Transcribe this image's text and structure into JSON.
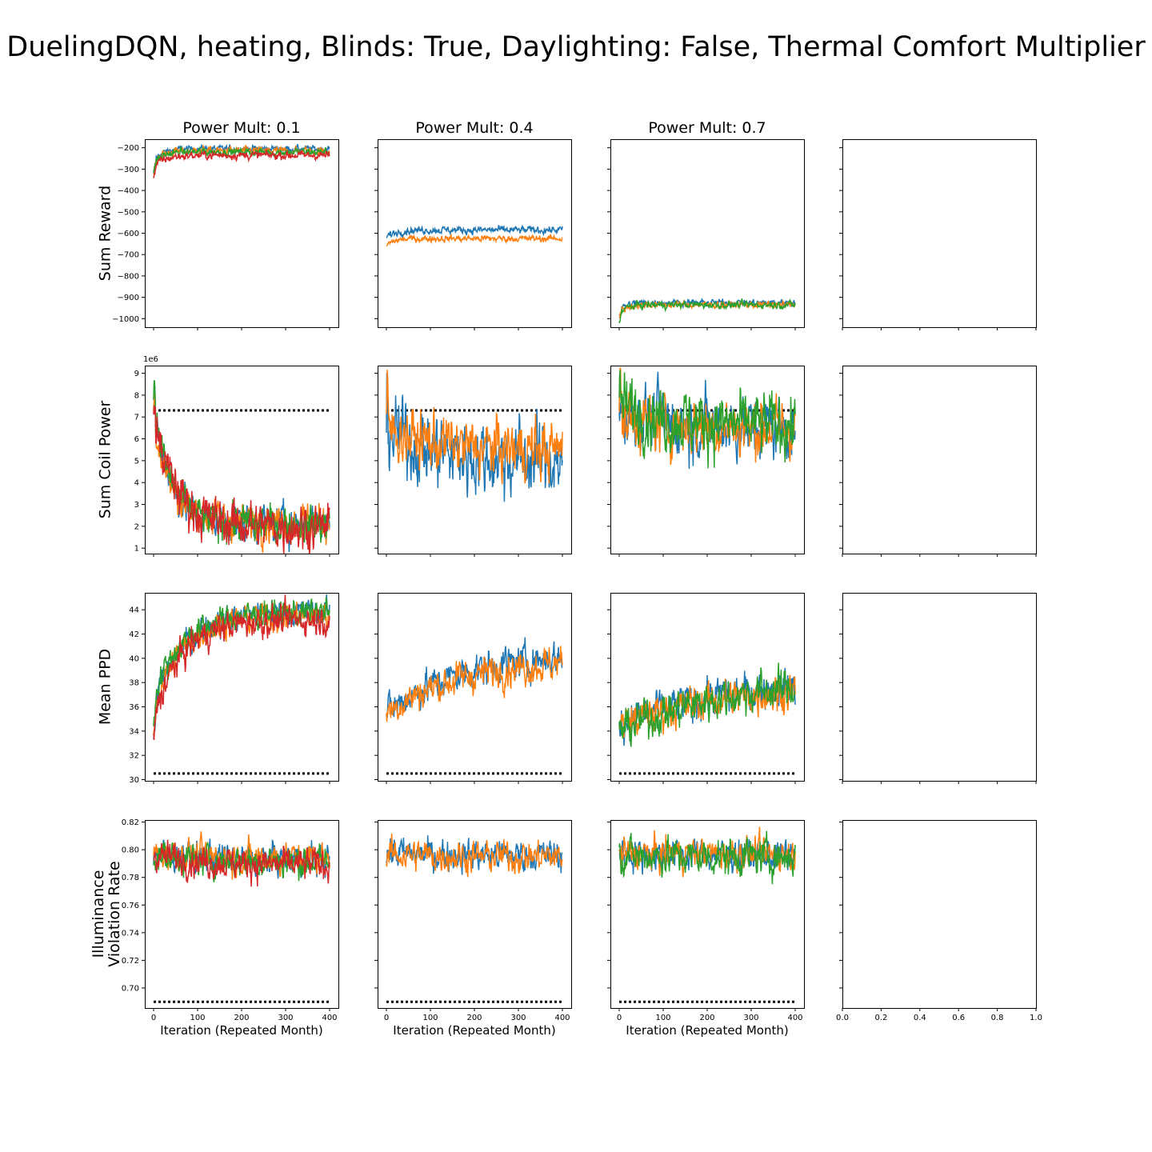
{
  "figure_title": "DuelingDQN, heating, Blinds: True, Daylighting: False, Thermal Comfort Multiplier",
  "xlabel": "Iteration (Repeated Month)",
  "column_titles": [
    "Power Mult: 0.1",
    "Power Mult: 0.4",
    "Power Mult: 0.7"
  ],
  "colors": {
    "C0": "#1f77b4",
    "C1": "#ff7f0e",
    "C2": "#2ca02c",
    "C3": "#d62728",
    "reference": "#000000"
  },
  "chart_data": {
    "type": "line",
    "layout": "4x4 grid of subplots (shared axes per row / column); last column empty",
    "x_range": [
      0,
      400
    ],
    "x_ticks": [
      0,
      100,
      200,
      300,
      400
    ],
    "empty_panel_x_ticks": [
      "0.0",
      "0.2",
      "0.4",
      "0.6",
      "0.8",
      "1.0"
    ],
    "rows": [
      {
        "ylabel": [
          "Sum Reward"
        ],
        "ylim": [
          -1040,
          -160
        ],
        "y_ticks": [
          -1000,
          -900,
          -800,
          -700,
          -600,
          -500,
          -400,
          -300,
          -200
        ],
        "y_tick_labels": [
          "−1000",
          "−900",
          "−800",
          "−700",
          "−600",
          "−500",
          "−400",
          "−300",
          "−200"
        ],
        "offset_text": "",
        "reference": null,
        "panels": [
          {
            "series": [
              {
                "color": "C0",
                "start": -260,
                "end": -205,
                "early_min": -320,
                "rate": 0.05,
                "noise": 8
              },
              {
                "color": "C1",
                "start": -265,
                "end": -215,
                "early_min": -330,
                "rate": 0.05,
                "noise": 10
              },
              {
                "color": "C2",
                "start": -270,
                "end": -220,
                "early_min": -325,
                "rate": 0.05,
                "noise": 10
              },
              {
                "color": "C3",
                "start": -290,
                "end": -235,
                "early_min": -340,
                "rate": 0.04,
                "noise": 10
              }
            ]
          },
          {
            "series": [
              {
                "color": "C0",
                "start": -620,
                "end": -585,
                "rate": 0.05,
                "noise": 9
              },
              {
                "color": "C1",
                "start": -655,
                "end": -625,
                "rate": 0.05,
                "noise": 8
              }
            ]
          },
          {
            "series": [
              {
                "color": "C0",
                "start": -960,
                "end": -925,
                "early_min": -985,
                "rate": 0.06,
                "noise": 8
              },
              {
                "color": "C1",
                "start": -970,
                "end": -935,
                "early_min": -995,
                "rate": 0.06,
                "noise": 8
              },
              {
                "color": "C2",
                "start": -975,
                "end": -935,
                "early_min": -1005,
                "rate": 0.06,
                "noise": 9
              }
            ]
          }
        ]
      },
      {
        "ylabel": [
          "Sum Coil Power"
        ],
        "ylim": [
          0.75,
          9.35
        ],
        "y_ticks": [
          1,
          2,
          3,
          4,
          5,
          6,
          7,
          8,
          9
        ],
        "y_tick_labels": [
          "1",
          "2",
          "3",
          "4",
          "5",
          "6",
          "7",
          "8",
          "9"
        ],
        "offset_text": "1e6",
        "reference": 7.3,
        "panels": [
          {
            "series": [
              {
                "color": "C0",
                "start": 7.5,
                "end": 2.1,
                "early_max": 8.5,
                "rate": 0.025,
                "noise": 0.45
              },
              {
                "color": "C1",
                "start": 7.0,
                "end": 2.2,
                "early_max": 8.0,
                "rate": 0.025,
                "noise": 0.45
              },
              {
                "color": "C2",
                "start": 7.5,
                "end": 2.1,
                "early_max": 8.9,
                "rate": 0.025,
                "noise": 0.45
              },
              {
                "color": "C3",
                "start": 7.0,
                "end": 2.0,
                "early_max": 7.8,
                "rate": 0.02,
                "noise": 0.55
              }
            ]
          },
          {
            "series": [
              {
                "color": "C0",
                "start": 6.5,
                "end": 5.0,
                "early_max": 8.4,
                "rate": 0.01,
                "noise": 0.9
              },
              {
                "color": "C1",
                "start": 6.5,
                "end": 5.5,
                "early_max": 8.0,
                "rate": 0.01,
                "noise": 0.7
              }
            ]
          },
          {
            "series": [
              {
                "color": "C0",
                "start": 7.3,
                "end": 6.5,
                "early_max": 8.8,
                "rate": 0.01,
                "noise": 0.75
              },
              {
                "color": "C1",
                "start": 7.0,
                "end": 6.5,
                "early_max": 8.5,
                "rate": 0.01,
                "noise": 0.7
              },
              {
                "color": "C2",
                "start": 7.6,
                "end": 6.6,
                "early_max": 8.8,
                "rate": 0.01,
                "noise": 0.75
              }
            ]
          }
        ]
      },
      {
        "ylabel": [
          "Mean PPD"
        ],
        "ylim": [
          29.9,
          45.4
        ],
        "y_ticks": [
          30,
          32,
          34,
          36,
          38,
          40,
          42,
          44
        ],
        "y_tick_labels": [
          "30",
          "32",
          "34",
          "36",
          "38",
          "40",
          "42",
          "44"
        ],
        "offset_text": "",
        "reference": 30.5,
        "panels": [
          {
            "series": [
              {
                "color": "C0",
                "start": 36,
                "end": 43.8,
                "early_min": 33.5,
                "rate": 0.015,
                "noise": 0.6
              },
              {
                "color": "C1",
                "start": 36,
                "end": 43.5,
                "early_min": 33.5,
                "rate": 0.015,
                "noise": 0.6
              },
              {
                "color": "C2",
                "start": 37,
                "end": 43.8,
                "early_min": 34.5,
                "rate": 0.015,
                "noise": 0.6
              },
              {
                "color": "C3",
                "start": 35,
                "end": 43.2,
                "early_min": 32.9,
                "rate": 0.016,
                "noise": 0.65
              }
            ]
          },
          {
            "series": [
              {
                "color": "C0",
                "start": 35.5,
                "end": 40.5,
                "rate": 0.006,
                "noise": 0.75
              },
              {
                "color": "C1",
                "start": 35.5,
                "end": 40.0,
                "rate": 0.006,
                "noise": 0.75
              }
            ]
          },
          {
            "series": [
              {
                "color": "C0",
                "start": 34.5,
                "end": 38.5,
                "rate": 0.004,
                "noise": 0.8
              },
              {
                "color": "C1",
                "start": 34.5,
                "end": 38.0,
                "rate": 0.004,
                "noise": 0.8
              },
              {
                "color": "C2",
                "start": 34.0,
                "end": 38.5,
                "rate": 0.004,
                "noise": 0.85
              }
            ]
          }
        ]
      },
      {
        "ylabel": [
          "Illuminance",
          "Violation Rate"
        ],
        "ylim": [
          0.6855,
          0.8215
        ],
        "y_ticks": [
          0.7,
          0.72,
          0.74,
          0.76,
          0.78,
          0.8,
          0.82
        ],
        "y_tick_labels": [
          "0.70",
          "0.72",
          "0.74",
          "0.76",
          "0.78",
          "0.80",
          "0.82"
        ],
        "offset_text": "",
        "reference": 0.69,
        "panels": [
          {
            "series": [
              {
                "color": "C0",
                "start": 0.797,
                "end": 0.793,
                "rate": 0.01,
                "noise": 0.006
              },
              {
                "color": "C1",
                "start": 0.798,
                "end": 0.794,
                "rate": 0.01,
                "noise": 0.006
              },
              {
                "color": "C2",
                "start": 0.796,
                "end": 0.791,
                "rate": 0.01,
                "noise": 0.006
              },
              {
                "color": "C3",
                "start": 0.797,
                "end": 0.789,
                "rate": 0.01,
                "noise": 0.006
              }
            ]
          },
          {
            "series": [
              {
                "color": "C0",
                "start": 0.798,
                "end": 0.796,
                "rate": 0.01,
                "noise": 0.006
              },
              {
                "color": "C1",
                "start": 0.797,
                "end": 0.795,
                "rate": 0.01,
                "noise": 0.006
              }
            ]
          },
          {
            "series": [
              {
                "color": "C0",
                "start": 0.797,
                "end": 0.796,
                "rate": 0.01,
                "noise": 0.006
              },
              {
                "color": "C1",
                "start": 0.797,
                "end": 0.797,
                "rate": 0.01,
                "noise": 0.006
              },
              {
                "color": "C2",
                "start": 0.796,
                "end": 0.795,
                "rate": 0.01,
                "noise": 0.007
              }
            ]
          }
        ]
      }
    ]
  }
}
